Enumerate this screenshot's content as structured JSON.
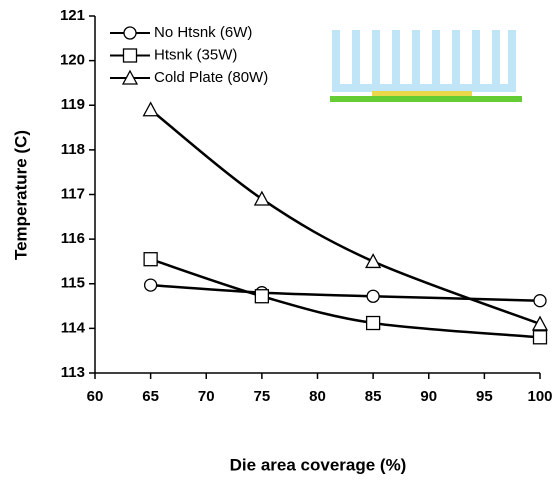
{
  "chart_data": {
    "type": "line",
    "x_label": "Die area coverage (%)",
    "y_label": "Temperature (C)",
    "x": [
      65,
      75,
      85,
      100
    ],
    "series": [
      {
        "name": "No Htsnk (6W)",
        "color": "#000000",
        "marker": "circle",
        "values": [
          114.97,
          114.8,
          114.72,
          114.62
        ]
      },
      {
        "name": "Htsnk (35W)",
        "color": "#000000",
        "marker": "square",
        "values": [
          115.55,
          114.72,
          114.12,
          113.8
        ]
      },
      {
        "name": "Cold Plate (80W)",
        "color": "#000000",
        "marker": "triangle",
        "values": [
          118.9,
          116.9,
          115.5,
          114.1
        ]
      }
    ],
    "xlim": [
      60,
      100
    ],
    "xticks": [
      60,
      65,
      70,
      75,
      80,
      85,
      90,
      95,
      100
    ],
    "ylim": [
      113,
      121
    ],
    "yticks": [
      113,
      114,
      115,
      116,
      117,
      118,
      119,
      120,
      121
    ],
    "legend": "upper-left"
  }
}
